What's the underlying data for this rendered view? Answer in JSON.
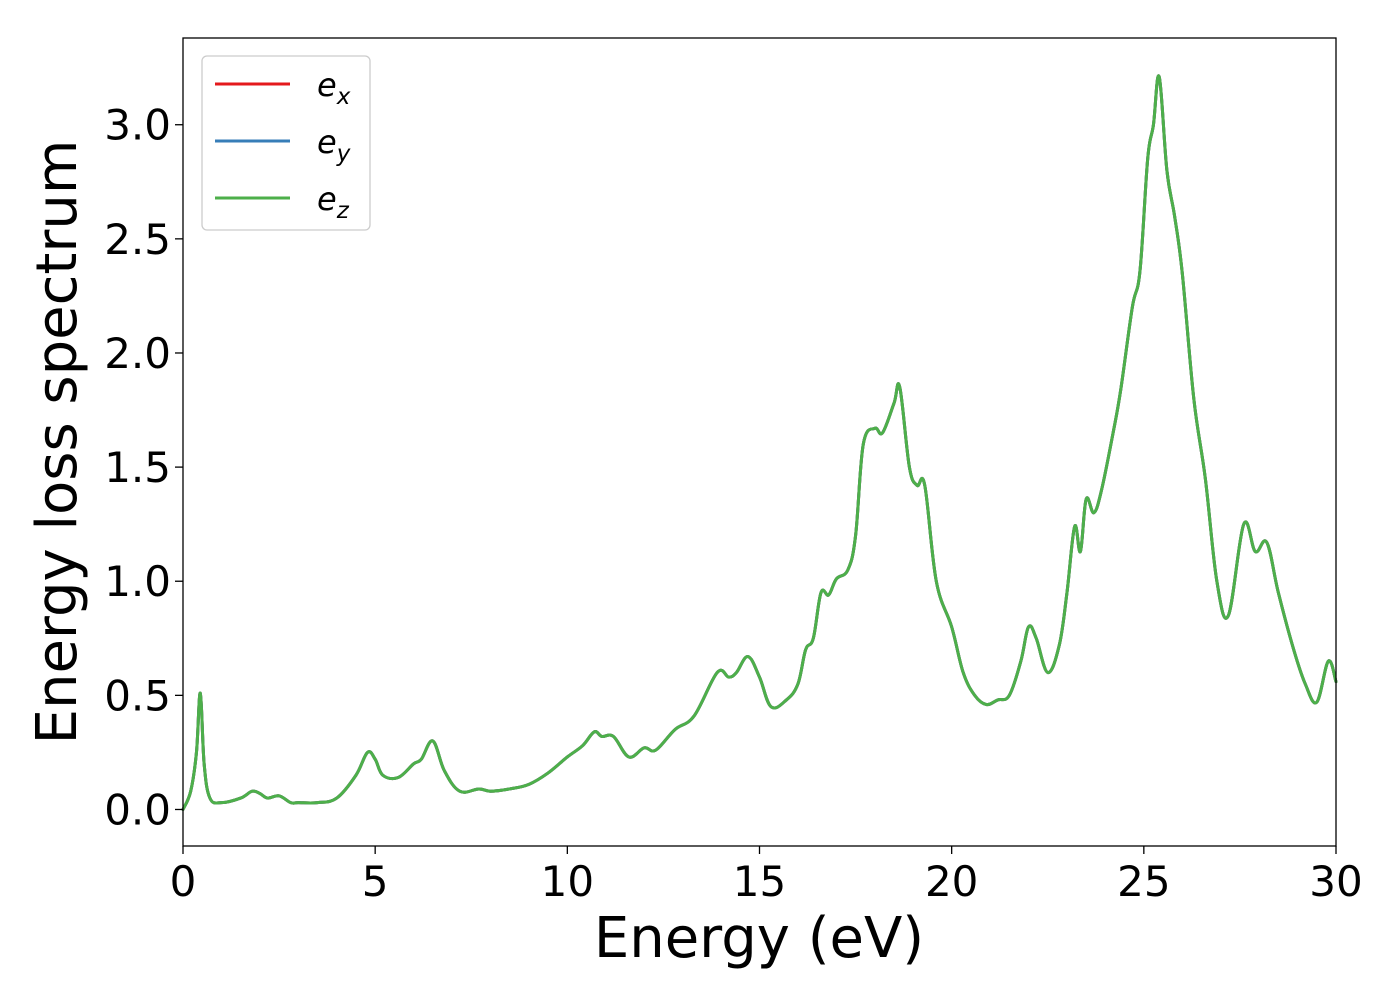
{
  "chart_data": {
    "type": "line",
    "title": "",
    "xlabel": "Energy (eV)",
    "ylabel": "Energy loss spectrum",
    "xlim": [
      0,
      30
    ],
    "ylim": [
      -0.16,
      3.38
    ],
    "xticks": [
      0,
      5,
      10,
      15,
      20,
      25,
      30
    ],
    "yticks": [
      0.0,
      0.5,
      1.0,
      1.5,
      2.0,
      2.5,
      3.0
    ],
    "xtick_labels": [
      "0",
      "5",
      "10",
      "15",
      "20",
      "25",
      "30"
    ],
    "ytick_labels": [
      "0.0",
      "0.5",
      "1.0",
      "1.5",
      "2.0",
      "2.5",
      "3.0"
    ],
    "grid": false,
    "legend": "top-left",
    "x": [
      0.0,
      0.2,
      0.35,
      0.45,
      0.55,
      0.7,
      1.0,
      1.5,
      1.8,
      2.0,
      2.2,
      2.5,
      2.8,
      3.0,
      3.5,
      4.0,
      4.5,
      4.8,
      5.0,
      5.2,
      5.6,
      6.0,
      6.2,
      6.5,
      6.8,
      7.2,
      7.7,
      8.0,
      8.5,
      9.0,
      9.5,
      10.0,
      10.4,
      10.7,
      10.9,
      11.2,
      11.6,
      12.0,
      12.3,
      12.8,
      13.3,
      13.9,
      14.2,
      14.4,
      14.7,
      15.0,
      15.3,
      15.7,
      16.0,
      16.2,
      16.4,
      16.6,
      16.8,
      17.0,
      17.3,
      17.5,
      17.7,
      18.0,
      18.2,
      18.5,
      18.65,
      18.9,
      19.1,
      19.3,
      19.6,
      20.0,
      20.3,
      20.6,
      20.9,
      21.2,
      21.5,
      21.8,
      22.0,
      22.2,
      22.5,
      22.8,
      23.0,
      23.2,
      23.35,
      23.5,
      23.7,
      23.9,
      24.2,
      24.4,
      24.7,
      24.9,
      25.1,
      25.25,
      25.4,
      25.6,
      25.8,
      26.0,
      26.3,
      26.6,
      26.9,
      27.2,
      27.6,
      27.9,
      28.2,
      28.5,
      28.9,
      29.2,
      29.5,
      29.8,
      30.0
    ],
    "series": [
      {
        "name": "e_x",
        "color": "#e41a1c",
        "values": [
          0.0,
          0.08,
          0.25,
          0.51,
          0.2,
          0.05,
          0.03,
          0.05,
          0.08,
          0.07,
          0.05,
          0.06,
          0.03,
          0.03,
          0.03,
          0.05,
          0.15,
          0.25,
          0.22,
          0.15,
          0.14,
          0.2,
          0.22,
          0.3,
          0.17,
          0.08,
          0.09,
          0.08,
          0.09,
          0.11,
          0.16,
          0.23,
          0.28,
          0.34,
          0.32,
          0.32,
          0.23,
          0.27,
          0.26,
          0.35,
          0.41,
          0.6,
          0.58,
          0.6,
          0.67,
          0.58,
          0.45,
          0.48,
          0.55,
          0.7,
          0.75,
          0.95,
          0.94,
          1.01,
          1.05,
          1.2,
          1.6,
          1.67,
          1.65,
          1.78,
          1.85,
          1.5,
          1.42,
          1.42,
          1.0,
          0.8,
          0.6,
          0.5,
          0.46,
          0.48,
          0.5,
          0.65,
          0.8,
          0.75,
          0.6,
          0.72,
          0.95,
          1.24,
          1.13,
          1.36,
          1.3,
          1.4,
          1.65,
          1.84,
          2.2,
          2.36,
          2.85,
          3.0,
          3.21,
          2.8,
          2.6,
          2.35,
          1.8,
          1.45,
          1.0,
          0.85,
          1.25,
          1.13,
          1.17,
          0.95,
          0.7,
          0.55,
          0.47,
          0.65,
          0.56
        ]
      },
      {
        "name": "e_y",
        "color": "#377eb8",
        "values": [
          0.0,
          0.08,
          0.25,
          0.51,
          0.2,
          0.05,
          0.03,
          0.05,
          0.08,
          0.07,
          0.05,
          0.06,
          0.03,
          0.03,
          0.03,
          0.05,
          0.15,
          0.25,
          0.22,
          0.15,
          0.14,
          0.2,
          0.22,
          0.3,
          0.17,
          0.08,
          0.09,
          0.08,
          0.09,
          0.11,
          0.16,
          0.23,
          0.28,
          0.34,
          0.32,
          0.32,
          0.23,
          0.27,
          0.26,
          0.35,
          0.41,
          0.6,
          0.58,
          0.6,
          0.67,
          0.58,
          0.45,
          0.48,
          0.55,
          0.7,
          0.75,
          0.95,
          0.94,
          1.01,
          1.05,
          1.2,
          1.6,
          1.67,
          1.65,
          1.78,
          1.85,
          1.5,
          1.42,
          1.42,
          1.0,
          0.8,
          0.6,
          0.5,
          0.46,
          0.48,
          0.5,
          0.65,
          0.8,
          0.75,
          0.6,
          0.72,
          0.95,
          1.24,
          1.13,
          1.36,
          1.3,
          1.4,
          1.65,
          1.84,
          2.2,
          2.36,
          2.85,
          3.0,
          3.21,
          2.8,
          2.6,
          2.35,
          1.8,
          1.45,
          1.0,
          0.85,
          1.25,
          1.13,
          1.17,
          0.95,
          0.7,
          0.55,
          0.47,
          0.65,
          0.56
        ]
      },
      {
        "name": "e_z",
        "color": "#4daf4a",
        "values": [
          0.0,
          0.08,
          0.25,
          0.51,
          0.2,
          0.05,
          0.03,
          0.05,
          0.08,
          0.07,
          0.05,
          0.06,
          0.03,
          0.03,
          0.03,
          0.05,
          0.15,
          0.25,
          0.22,
          0.15,
          0.14,
          0.2,
          0.22,
          0.3,
          0.17,
          0.08,
          0.09,
          0.08,
          0.09,
          0.11,
          0.16,
          0.23,
          0.28,
          0.34,
          0.32,
          0.32,
          0.23,
          0.27,
          0.26,
          0.35,
          0.41,
          0.6,
          0.58,
          0.6,
          0.67,
          0.58,
          0.45,
          0.48,
          0.55,
          0.7,
          0.75,
          0.95,
          0.94,
          1.01,
          1.05,
          1.2,
          1.6,
          1.67,
          1.65,
          1.78,
          1.85,
          1.5,
          1.42,
          1.42,
          1.0,
          0.8,
          0.6,
          0.5,
          0.46,
          0.48,
          0.5,
          0.65,
          0.8,
          0.75,
          0.6,
          0.72,
          0.95,
          1.24,
          1.13,
          1.36,
          1.3,
          1.4,
          1.65,
          1.84,
          2.2,
          2.36,
          2.85,
          3.0,
          3.21,
          2.8,
          2.6,
          2.35,
          1.8,
          1.45,
          1.0,
          0.85,
          1.25,
          1.13,
          1.17,
          0.95,
          0.7,
          0.55,
          0.47,
          0.65,
          0.56
        ]
      }
    ],
    "legend_entries": [
      {
        "base": "e",
        "sub": "x",
        "color": "#e41a1c"
      },
      {
        "base": "e",
        "sub": "y",
        "color": "#377eb8"
      },
      {
        "base": "e",
        "sub": "z",
        "color": "#4daf4a"
      }
    ]
  }
}
